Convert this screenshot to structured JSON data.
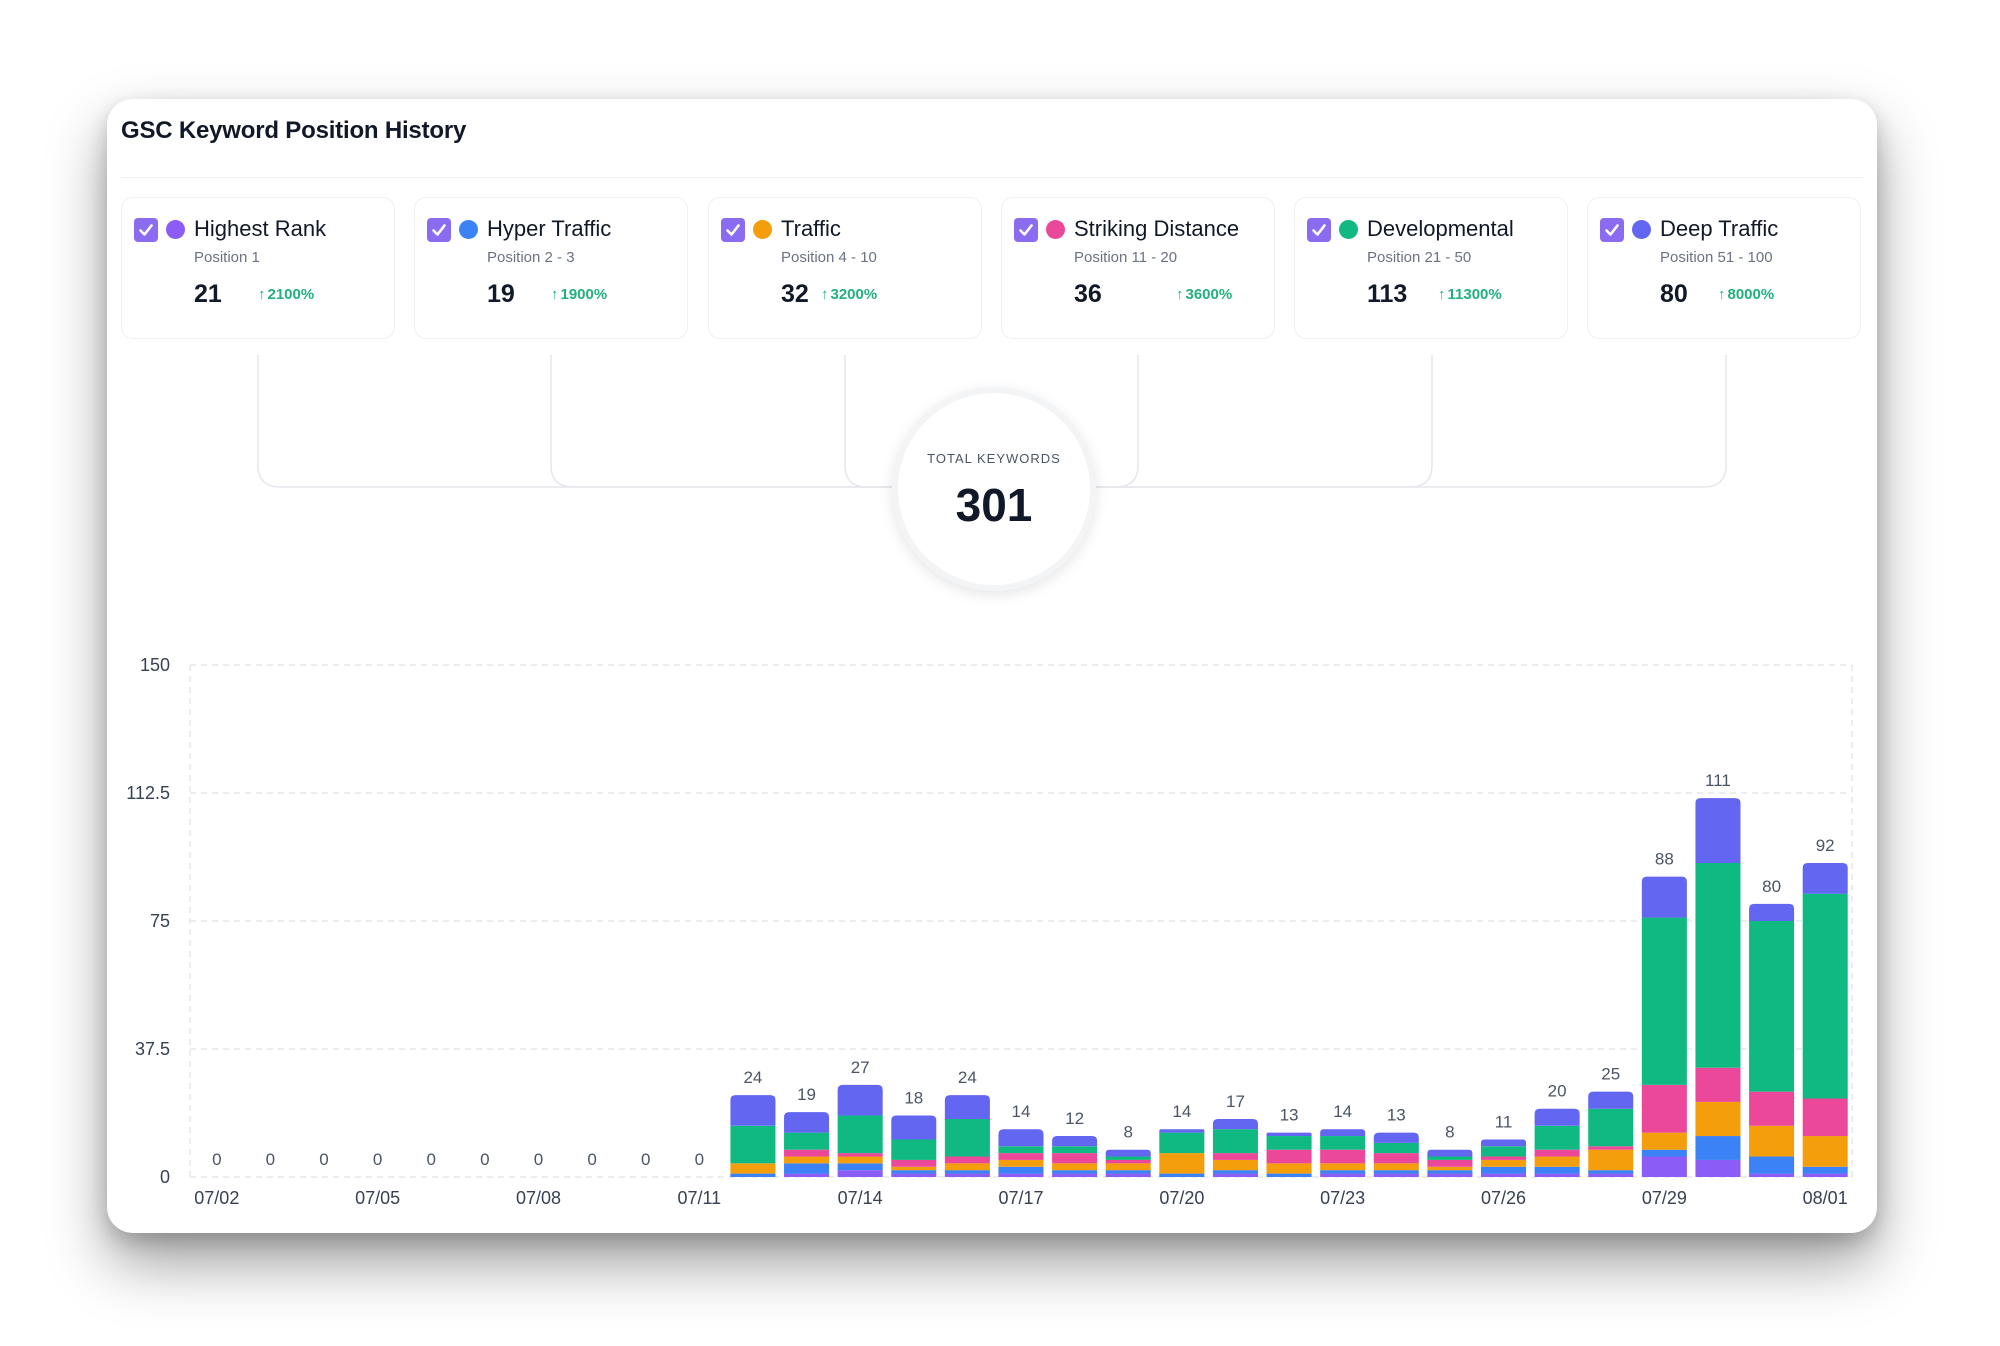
{
  "card": {
    "title": "GSC Keyword Position History"
  },
  "tiers": [
    {
      "name": "Highest Rank",
      "range": "Position 1",
      "count": "21",
      "change": "2100%",
      "color": "#8b5cf6"
    },
    {
      "name": "Hyper Traffic",
      "range": "Position 2 - 3",
      "count": "19",
      "change": "1900%",
      "color": "#3b82f6"
    },
    {
      "name": "Traffic",
      "range": "Position 4 - 10",
      "count": "32",
      "change": "3200%",
      "color": "#f59e0b"
    },
    {
      "name": "Striking Distance",
      "range": "Position 11 - 20",
      "count": "36",
      "change": "3600%",
      "color": "#ec4899"
    },
    {
      "name": "Developmental",
      "range": "Position 21 - 50",
      "count": "113",
      "change": "11300%",
      "color": "#10b981"
    },
    {
      "name": "Deep Traffic",
      "range": "Position 51 - 100",
      "count": "80",
      "change": "8000%",
      "color": "#6366f1"
    }
  ],
  "total": {
    "label": "TOTAL KEYWORDS",
    "value": "301"
  },
  "chart_data": {
    "type": "bar",
    "stacked": true,
    "ylim": [
      0,
      150
    ],
    "yticks": [
      0,
      37.5,
      75,
      112.5,
      150
    ],
    "ytick_labels": [
      "0",
      "37.5",
      "75",
      "112.5",
      "150"
    ],
    "grid": true,
    "categories": [
      "07/02",
      "07/03",
      "07/04",
      "07/05",
      "07/06",
      "07/07",
      "07/08",
      "07/09",
      "07/10",
      "07/11",
      "07/12",
      "07/13",
      "07/14",
      "07/15",
      "07/16",
      "07/17",
      "07/18",
      "07/19",
      "07/20",
      "07/21",
      "07/22",
      "07/23",
      "07/24",
      "07/25",
      "07/26",
      "07/27",
      "07/28",
      "07/29",
      "07/30",
      "07/31",
      "08/01"
    ],
    "xtick_labels": [
      "07/02",
      "07/05",
      "07/08",
      "07/11",
      "07/14",
      "07/17",
      "07/20",
      "07/23",
      "07/26",
      "07/29",
      "08/01"
    ],
    "totals": [
      0,
      0,
      0,
      0,
      0,
      0,
      0,
      0,
      0,
      0,
      24,
      19,
      27,
      18,
      24,
      14,
      12,
      8,
      14,
      17,
      13,
      14,
      13,
      8,
      11,
      20,
      25,
      88,
      111,
      80,
      92
    ],
    "series": [
      {
        "name": "Highest Rank",
        "color": "#8b5cf6",
        "values": [
          0,
          0,
          0,
          0,
          0,
          0,
          0,
          0,
          0,
          0,
          0,
          1,
          2,
          1,
          1,
          1,
          1,
          1,
          0,
          1,
          0,
          1,
          1,
          1,
          1,
          1,
          1,
          6,
          5,
          1,
          1
        ]
      },
      {
        "name": "Hyper Traffic",
        "color": "#3b82f6",
        "values": [
          0,
          0,
          0,
          0,
          0,
          0,
          0,
          0,
          0,
          0,
          1,
          3,
          2,
          1,
          1,
          2,
          1,
          1,
          1,
          1,
          1,
          1,
          1,
          1,
          2,
          2,
          1,
          2,
          7,
          5,
          2
        ]
      },
      {
        "name": "Traffic",
        "color": "#f59e0b",
        "values": [
          0,
          0,
          0,
          0,
          0,
          0,
          0,
          0,
          0,
          0,
          3,
          2,
          2,
          1,
          2,
          2,
          2,
          2,
          6,
          3,
          3,
          2,
          2,
          1,
          2,
          3,
          6,
          5,
          10,
          9,
          9
        ]
      },
      {
        "name": "Striking Distance",
        "color": "#ec4899",
        "values": [
          0,
          0,
          0,
          0,
          0,
          0,
          0,
          0,
          0,
          0,
          0,
          2,
          1,
          2,
          2,
          2,
          3,
          1,
          0,
          2,
          4,
          4,
          3,
          2,
          1,
          2,
          1,
          14,
          10,
          10,
          11
        ]
      },
      {
        "name": "Developmental",
        "color": "#10b981",
        "values": [
          0,
          0,
          0,
          0,
          0,
          0,
          0,
          0,
          0,
          0,
          11,
          5,
          11,
          6,
          11,
          2,
          2,
          1,
          6,
          7,
          4,
          4,
          3,
          1,
          3,
          7,
          11,
          49,
          60,
          50,
          60
        ]
      },
      {
        "name": "Deep Traffic",
        "color": "#6366f1",
        "values": [
          0,
          0,
          0,
          0,
          0,
          0,
          0,
          0,
          0,
          0,
          9,
          6,
          9,
          7,
          7,
          5,
          3,
          2,
          1,
          3,
          1,
          2,
          3,
          2,
          2,
          5,
          5,
          12,
          19,
          5,
          9
        ]
      }
    ]
  }
}
